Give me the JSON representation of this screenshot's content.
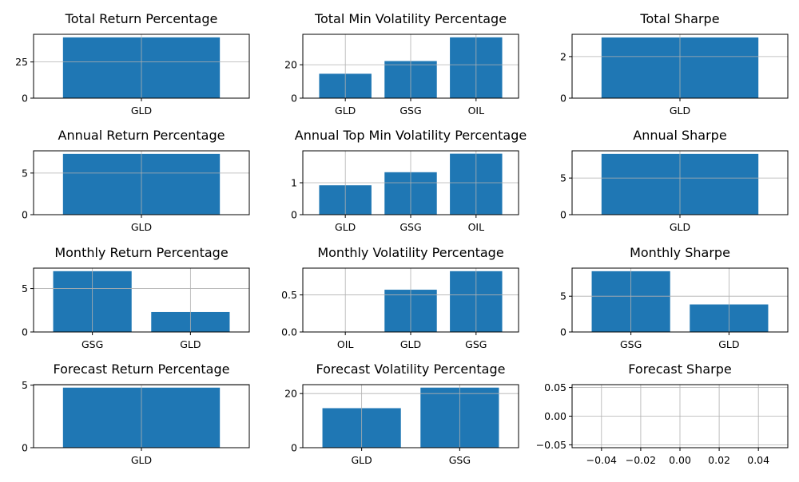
{
  "colors": {
    "bar": "#1f77b4",
    "grid": "#b0b0b0",
    "axis": "#000000",
    "background": "#ffffff"
  },
  "chart_data": [
    {
      "type": "bar",
      "title": "Total Return Percentage",
      "categories": [
        "GLD"
      ],
      "values": [
        42.0
      ],
      "ylim": [
        0,
        44.1
      ],
      "yticks": [
        0,
        25
      ],
      "yticklabels": [
        "0",
        "25"
      ],
      "xlabel": "",
      "ylabel": "",
      "grid": true
    },
    {
      "type": "bar",
      "title": "Total Min Volatility Percentage",
      "categories": [
        "GLD",
        "GSG",
        "OIL"
      ],
      "values": [
        14.6,
        22.2,
        36.4
      ],
      "ylim": [
        0,
        38.2
      ],
      "yticks": [
        0,
        20
      ],
      "yticklabels": [
        "0",
        "20"
      ],
      "xlabel": "",
      "ylabel": "",
      "grid": true
    },
    {
      "type": "bar",
      "title": "Total Sharpe",
      "categories": [
        "GLD"
      ],
      "values": [
        2.92
      ],
      "ylim": [
        0,
        3.07
      ],
      "yticks": [
        0,
        2
      ],
      "yticklabels": [
        "0",
        "2"
      ],
      "xlabel": "",
      "ylabel": "",
      "grid": true
    },
    {
      "type": "bar",
      "title": "Annual Return Percentage",
      "categories": [
        "GLD"
      ],
      "values": [
        7.3
      ],
      "ylim": [
        0,
        7.67
      ],
      "yticks": [
        0,
        5
      ],
      "yticklabels": [
        "0",
        "5"
      ],
      "xlabel": "",
      "ylabel": "",
      "grid": true
    },
    {
      "type": "bar",
      "title": "Annual Top Min Volatility Percentage",
      "categories": [
        "GLD",
        "GSG",
        "OIL"
      ],
      "values": [
        0.92,
        1.33,
        1.91
      ],
      "ylim": [
        0,
        2.0
      ],
      "yticks": [
        0,
        1
      ],
      "yticklabels": [
        "0",
        "1"
      ],
      "xlabel": "",
      "ylabel": "",
      "grid": true
    },
    {
      "type": "bar",
      "title": "Annual Sharpe",
      "categories": [
        "GLD"
      ],
      "values": [
        8.3
      ],
      "ylim": [
        0,
        8.72
      ],
      "yticks": [
        0,
        5
      ],
      "yticklabels": [
        "0",
        "5"
      ],
      "xlabel": "",
      "ylabel": "",
      "grid": true
    },
    {
      "type": "bar",
      "title": "Monthly Return Percentage",
      "categories": [
        "GSG",
        "GLD"
      ],
      "values": [
        7.0,
        2.3
      ],
      "ylim": [
        0,
        7.35
      ],
      "yticks": [
        0,
        5
      ],
      "yticklabels": [
        "0",
        "5"
      ],
      "xlabel": "",
      "ylabel": "",
      "grid": true
    },
    {
      "type": "bar",
      "title": "Monthly Volatility Percentage",
      "categories": [
        "OIL",
        "GLD",
        "GSG"
      ],
      "values": [
        0.0,
        0.57,
        0.82
      ],
      "ylim": [
        0,
        0.861
      ],
      "yticks": [
        0,
        0.5
      ],
      "yticklabels": [
        "0.0",
        "0.5"
      ],
      "xlabel": "",
      "ylabel": "",
      "grid": true
    },
    {
      "type": "bar",
      "title": "Monthly Sharpe",
      "categories": [
        "GSG",
        "GLD"
      ],
      "values": [
        8.5,
        3.85
      ],
      "ylim": [
        0,
        8.93
      ],
      "yticks": [
        0,
        5
      ],
      "yticklabels": [
        "0",
        "5"
      ],
      "xlabel": "",
      "ylabel": "",
      "grid": true
    },
    {
      "type": "bar",
      "title": "Forecast Return Percentage",
      "categories": [
        "GLD"
      ],
      "values": [
        4.8
      ],
      "ylim": [
        0,
        5.04
      ],
      "yticks": [
        0,
        5
      ],
      "yticklabels": [
        "0",
        "5"
      ],
      "xlabel": "",
      "ylabel": "",
      "grid": true
    },
    {
      "type": "bar",
      "title": "Forecast Volatility Percentage",
      "categories": [
        "GLD",
        "GSG"
      ],
      "values": [
        14.6,
        22.2
      ],
      "ylim": [
        0,
        23.3
      ],
      "yticks": [
        0,
        20
      ],
      "yticklabels": [
        "0",
        "20"
      ],
      "xlabel": "",
      "ylabel": "",
      "grid": true
    },
    {
      "type": "bar",
      "title": "Forecast Sharpe",
      "categories": [],
      "values": [],
      "xlim": [
        -0.055,
        0.055
      ],
      "ylim": [
        -0.055,
        0.055
      ],
      "xticks": [
        -0.04,
        -0.02,
        0.0,
        0.02,
        0.04
      ],
      "xticklabels": [
        "−0.04",
        "−0.02",
        "0.00",
        "0.02",
        "0.04"
      ],
      "yticks": [
        -0.05,
        0.0,
        0.05
      ],
      "yticklabels": [
        "−0.05",
        "0.00",
        "0.05"
      ],
      "xlabel": "",
      "ylabel": "",
      "grid": true
    }
  ]
}
